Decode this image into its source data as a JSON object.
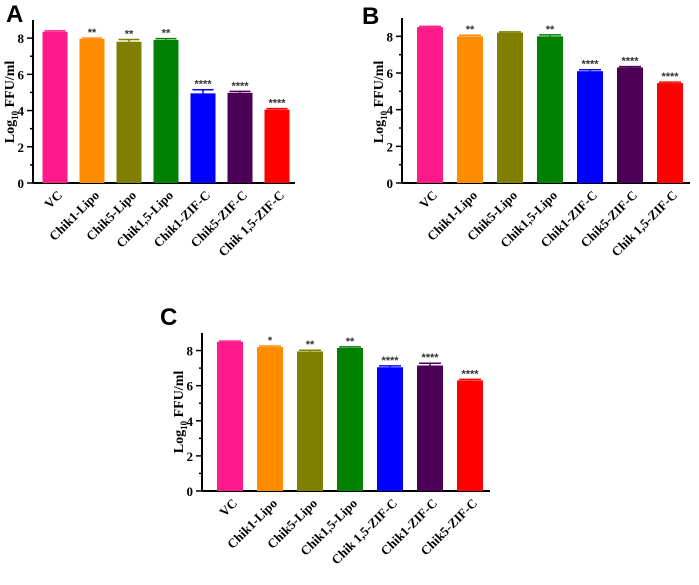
{
  "figure": {
    "panels": [
      "A",
      "B",
      "C"
    ]
  },
  "chart_data": [
    {
      "panel": "A",
      "type": "bar",
      "title": "",
      "xlabel": "",
      "ylabel_main": "Log",
      "ylabel_sub": "10",
      "ylabel_rest": " FFU/ml",
      "ylim": [
        0,
        9
      ],
      "yticks": [
        0,
        2,
        4,
        6,
        8
      ],
      "categories": [
        "VC",
        "Chik1-Lipo",
        "Chik5-Lipo",
        "Chik1,5-Lipo",
        "Chik1-ZIF-C",
        "Chik5-ZIF-C",
        "Chik 1,5-ZIF-C"
      ],
      "values": [
        8.35,
        7.95,
        7.8,
        7.9,
        4.95,
        4.98,
        4.05
      ],
      "errors": [
        0.05,
        0.05,
        0.12,
        0.07,
        0.2,
        0.08,
        0.06
      ],
      "significance": [
        "",
        "**",
        "**",
        "**",
        "****",
        "****",
        "****"
      ],
      "colors": [
        "#ff1a8c",
        "#ff8c00",
        "#808000",
        "#008000",
        "#0000ff",
        "#4b0055",
        "#ff0000"
      ]
    },
    {
      "panel": "B",
      "type": "bar",
      "title": "",
      "xlabel": "",
      "ylabel_main": "Log",
      "ylabel_sub": "10",
      "ylabel_rest": " FFU/ml",
      "ylim": [
        0,
        9
      ],
      "yticks": [
        0,
        2,
        4,
        6,
        8
      ],
      "categories": [
        "VC",
        "Chik1-Lipo",
        "Chik5-Lipo",
        "Chik1,5-Lipo",
        "Chik1-ZIF-C",
        "Chik5-ZIF-C",
        "Chik 1,5-ZIF-C"
      ],
      "values": [
        8.5,
        8.0,
        8.2,
        8.0,
        6.1,
        6.3,
        5.45
      ],
      "errors": [
        0.04,
        0.06,
        0.04,
        0.08,
        0.08,
        0.05,
        0.05
      ],
      "significance": [
        "",
        "**",
        "",
        "**",
        "****",
        "****",
        "****"
      ],
      "colors": [
        "#ff1a8c",
        "#ff8c00",
        "#808000",
        "#008000",
        "#0000ff",
        "#4b0055",
        "#ff0000"
      ]
    },
    {
      "panel": "C",
      "type": "bar",
      "title": "",
      "xlabel": "",
      "ylabel_main": "Log",
      "ylabel_sub": "10",
      "ylabel_rest": " FFU/ml",
      "ylim": [
        0,
        9
      ],
      "yticks": [
        0,
        2,
        4,
        6,
        8
      ],
      "categories": [
        "VC",
        "Chik1-Lipo",
        "Chik5-Lipo",
        "Chik1,5-Lipo",
        "Chik 1,5-ZIF-C",
        "Chik1-ZIF-C",
        "Chik5-ZIF-C"
      ],
      "values": [
        8.5,
        8.2,
        7.95,
        8.15,
        7.05,
        7.15,
        6.3
      ],
      "errors": [
        0.04,
        0.06,
        0.07,
        0.06,
        0.08,
        0.13,
        0.06
      ],
      "significance": [
        "",
        "*",
        "**",
        "**",
        "****",
        "****",
        "****"
      ],
      "colors": [
        "#ff1a8c",
        "#ff8c00",
        "#808000",
        "#008000",
        "#0000ff",
        "#4b0055",
        "#ff0000"
      ]
    }
  ]
}
